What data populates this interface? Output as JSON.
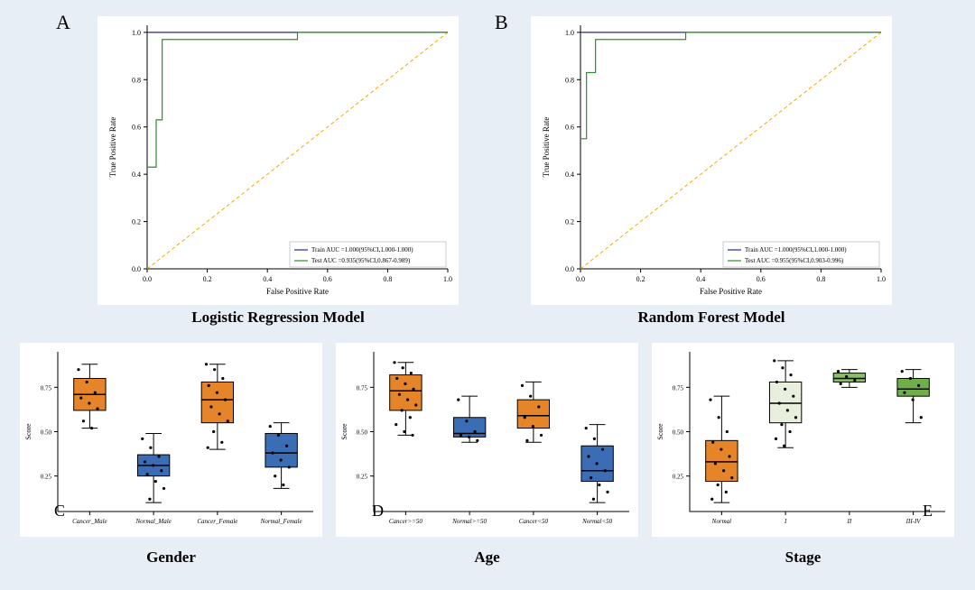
{
  "background_color": "#e8eef5",
  "panel_bg": "#ffffff",
  "rocA": {
    "type": "line",
    "title": "Logistic Regression Model",
    "panel_label": "A",
    "xlabel": "False Positive Rate",
    "ylabel": "True Positive Rate",
    "xlim": [
      0,
      1
    ],
    "ylim": [
      0,
      1.03
    ],
    "ticks": [
      0.0,
      0.2,
      0.4,
      0.6,
      0.8,
      1.0
    ],
    "diagonal_color": "#ffa500",
    "train_color": "#1f2a8a",
    "test_color": "#2e8b2e",
    "train": [
      [
        0,
        1
      ],
      [
        0.5,
        1
      ],
      [
        1,
        1
      ]
    ],
    "test": [
      [
        0,
        0.43
      ],
      [
        0.03,
        0.43
      ],
      [
        0.03,
        0.63
      ],
      [
        0.05,
        0.63
      ],
      [
        0.05,
        0.97
      ],
      [
        0.5,
        0.97
      ],
      [
        0.5,
        1.0
      ],
      [
        1.0,
        1.0
      ]
    ],
    "legend_train": "Train AUC =1.000(95%CI,1.000-1.000)",
    "legend_test": "Test AUC =0.935(95%CI,0.867-0.989)",
    "label_fontsize": 9,
    "tick_fontsize": 8,
    "line_width": 1.2
  },
  "rocB": {
    "type": "line",
    "title": "Random Forest Model",
    "panel_label": "B",
    "xlabel": "False Positive Rate",
    "ylabel": "True Positive Rate",
    "xlim": [
      0,
      1
    ],
    "ylim": [
      0,
      1.03
    ],
    "ticks": [
      0.0,
      0.2,
      0.4,
      0.6,
      0.8,
      1.0
    ],
    "diagonal_color": "#ffa500",
    "train_color": "#1f2a8a",
    "test_color": "#2e8b2e",
    "train": [
      [
        0,
        1
      ],
      [
        0.35,
        1
      ],
      [
        1,
        1
      ]
    ],
    "test": [
      [
        0,
        0.55
      ],
      [
        0.02,
        0.55
      ],
      [
        0.02,
        0.83
      ],
      [
        0.05,
        0.83
      ],
      [
        0.05,
        0.97
      ],
      [
        0.35,
        0.97
      ],
      [
        0.35,
        1.0
      ],
      [
        1.0,
        1.0
      ]
    ],
    "legend_train": "Train AUC =1.000(95%CI,1.000-1.000)",
    "legend_test": "Test AUC =0.955(95%CI,0.903-0.996)",
    "label_fontsize": 9,
    "tick_fontsize": 8,
    "line_width": 1.2
  },
  "boxC": {
    "type": "boxplot",
    "panel_label": "C",
    "title": "Gender",
    "ylabel": "Score",
    "categories": [
      "Cancer_Male",
      "Normal_Male",
      "Cancer_Female",
      "Normal_Female"
    ],
    "colors": [
      "#e6842a",
      "#3b6db5",
      "#e6842a",
      "#3b6db5"
    ],
    "yticks": [
      0.25,
      0.5,
      0.75
    ],
    "ylim": [
      0.05,
      0.95
    ],
    "boxes": [
      {
        "q1": 0.62,
        "median": 0.71,
        "q3": 0.8,
        "wlo": 0.52,
        "whi": 0.88,
        "points": [
          0.85,
          0.78,
          0.72,
          0.69,
          0.66,
          0.63,
          0.56,
          0.52
        ]
      },
      {
        "q1": 0.25,
        "median": 0.31,
        "q3": 0.37,
        "wlo": 0.1,
        "whi": 0.49,
        "points": [
          0.46,
          0.41,
          0.36,
          0.33,
          0.31,
          0.28,
          0.26,
          0.22,
          0.18,
          0.12
        ]
      },
      {
        "q1": 0.55,
        "median": 0.68,
        "q3": 0.78,
        "wlo": 0.4,
        "whi": 0.88,
        "points": [
          0.88,
          0.85,
          0.8,
          0.76,
          0.72,
          0.68,
          0.64,
          0.6,
          0.56,
          0.5,
          0.44,
          0.41
        ]
      },
      {
        "q1": 0.3,
        "median": 0.38,
        "q3": 0.49,
        "wlo": 0.18,
        "whi": 0.55,
        "points": [
          0.53,
          0.48,
          0.42,
          0.38,
          0.34,
          0.3,
          0.25,
          0.2
        ]
      }
    ],
    "point_color": "#000000",
    "label_fontsize": 8,
    "tick_fontsize": 7
  },
  "boxD": {
    "type": "boxplot",
    "panel_label": "D",
    "title": "Age",
    "ylabel": "Score",
    "categories": [
      "Cancer>=50",
      "Normal>=50",
      "Cancer<50",
      "Normal<50"
    ],
    "colors": [
      "#e6842a",
      "#3b6db5",
      "#e6842a",
      "#3b6db5"
    ],
    "yticks": [
      0.25,
      0.5,
      0.75
    ],
    "ylim": [
      0.05,
      0.95
    ],
    "boxes": [
      {
        "q1": 0.62,
        "median": 0.73,
        "q3": 0.82,
        "wlo": 0.48,
        "whi": 0.89,
        "points": [
          0.89,
          0.86,
          0.83,
          0.8,
          0.77,
          0.74,
          0.71,
          0.68,
          0.65,
          0.62,
          0.58,
          0.54,
          0.5,
          0.48
        ]
      },
      {
        "q1": 0.47,
        "median": 0.49,
        "q3": 0.58,
        "wlo": 0.44,
        "whi": 0.7,
        "points": [
          0.68,
          0.56,
          0.5,
          0.48,
          0.47,
          0.45
        ]
      },
      {
        "q1": 0.52,
        "median": 0.59,
        "q3": 0.68,
        "wlo": 0.44,
        "whi": 0.78,
        "points": [
          0.76,
          0.7,
          0.64,
          0.58,
          0.53,
          0.48,
          0.45
        ]
      },
      {
        "q1": 0.22,
        "median": 0.28,
        "q3": 0.42,
        "wlo": 0.1,
        "whi": 0.54,
        "points": [
          0.52,
          0.46,
          0.4,
          0.36,
          0.32,
          0.28,
          0.24,
          0.2,
          0.16,
          0.12
        ]
      }
    ],
    "point_color": "#000000",
    "label_fontsize": 8,
    "tick_fontsize": 7
  },
  "boxE": {
    "type": "boxplot",
    "panel_label": "E",
    "title": "Stage",
    "ylabel": "Score",
    "categories": [
      "Normal",
      "I",
      "II",
      "III-IV"
    ],
    "colors": [
      "#e6842a",
      "#e8efdc",
      "#8cbf6a",
      "#6fae4a"
    ],
    "yticks": [
      0.25,
      0.5,
      0.75
    ],
    "ylim": [
      0.05,
      0.95
    ],
    "boxes": [
      {
        "q1": 0.22,
        "median": 0.33,
        "q3": 0.45,
        "wlo": 0.1,
        "whi": 0.7,
        "points": [
          0.68,
          0.58,
          0.5,
          0.44,
          0.4,
          0.36,
          0.32,
          0.28,
          0.24,
          0.2,
          0.16,
          0.12
        ]
      },
      {
        "q1": 0.55,
        "median": 0.66,
        "q3": 0.78,
        "wlo": 0.41,
        "whi": 0.9,
        "points": [
          0.9,
          0.86,
          0.82,
          0.78,
          0.74,
          0.7,
          0.66,
          0.62,
          0.58,
          0.54,
          0.5,
          0.46,
          0.42
        ]
      },
      {
        "q1": 0.78,
        "median": 0.8,
        "q3": 0.83,
        "wlo": 0.75,
        "whi": 0.85,
        "points": [
          0.84,
          0.81,
          0.79,
          0.77
        ]
      },
      {
        "q1": 0.7,
        "median": 0.74,
        "q3": 0.8,
        "wlo": 0.55,
        "whi": 0.85,
        "points": [
          0.84,
          0.8,
          0.76,
          0.72,
          0.68,
          0.58
        ]
      }
    ],
    "point_color": "#000000",
    "label_fontsize": 8,
    "tick_fontsize": 7
  }
}
